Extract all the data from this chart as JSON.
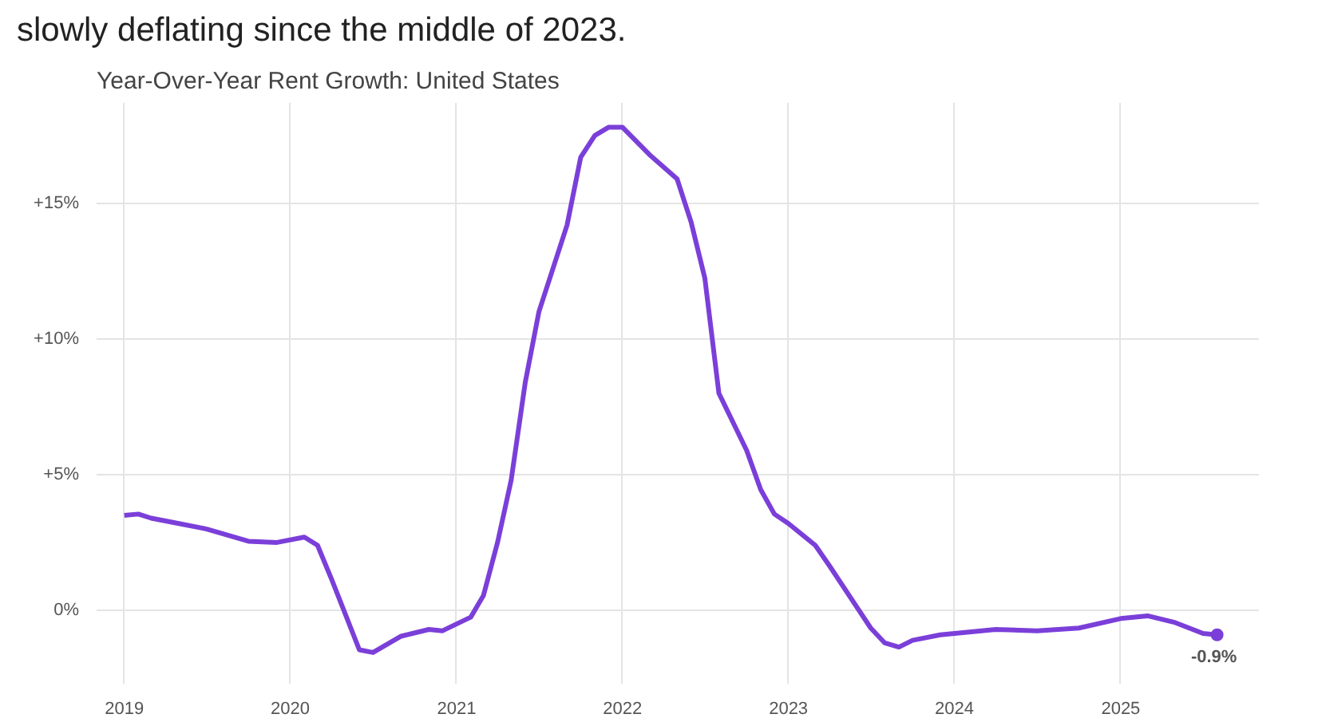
{
  "chart_data": {
    "type": "line",
    "title": "Year-Over-Year Rent Growth: United States",
    "annotations": [
      "slowly deflating since the middle of 2023.",
      {
        "text": "-0.9%",
        "x": "2025-08",
        "y": -0.9
      }
    ],
    "x": [
      "2019-01",
      "2019-02",
      "2019-03",
      "2019-05",
      "2019-07",
      "2019-10",
      "2019-12",
      "2020-02",
      "2020-03",
      "2020-04",
      "2020-06",
      "2020-07",
      "2020-09",
      "2020-11",
      "2020-12",
      "2021-02",
      "2021-03",
      "2021-04",
      "2021-05",
      "2021-06",
      "2021-07",
      "2021-09",
      "2021-10",
      "2021-11",
      "2021-12",
      "2022-01",
      "2022-03",
      "2022-05",
      "2022-06",
      "2022-07",
      "2022-08",
      "2022-10",
      "2022-11",
      "2022-12",
      "2023-01",
      "2023-03",
      "2023-04",
      "2023-07",
      "2023-08",
      "2023-09",
      "2023-10",
      "2023-12",
      "2024-04",
      "2024-07",
      "2024-10",
      "2025-01",
      "2025-03",
      "2025-05",
      "2025-07",
      "2025-08"
    ],
    "series": [
      {
        "color": "#7b3fd9",
        "values": [
          3.5,
          3.55,
          3.4,
          3.2,
          3.0,
          2.55,
          2.5,
          2.7,
          2.4,
          1.15,
          -1.45,
          -1.55,
          -0.95,
          -0.7,
          -0.75,
          -0.25,
          0.55,
          2.5,
          4.8,
          8.4,
          11.0,
          14.2,
          16.7,
          17.5,
          17.8,
          17.8,
          16.8,
          15.9,
          14.3,
          12.25,
          8.0,
          5.9,
          4.45,
          3.55,
          3.2,
          2.4,
          1.65,
          -0.65,
          -1.2,
          -1.35,
          -1.1,
          -0.9,
          -0.7,
          -0.75,
          -0.65,
          -0.3,
          -0.2,
          -0.45,
          -0.85,
          -0.9
        ]
      }
    ],
    "xlim": [
      "2018-11",
      "2025-11"
    ],
    "xticks": [
      "2019",
      "2020",
      "2021",
      "2022",
      "2023",
      "2024",
      "2025"
    ],
    "ylim": [
      -2.7,
      18.7
    ],
    "yticks": [
      {
        "value": 0,
        "label": "0%"
      },
      {
        "value": 5,
        "label": "+5%"
      },
      {
        "value": 10,
        "label": "+10%"
      },
      {
        "value": 15,
        "label": "+15%"
      }
    ],
    "grid": true
  }
}
